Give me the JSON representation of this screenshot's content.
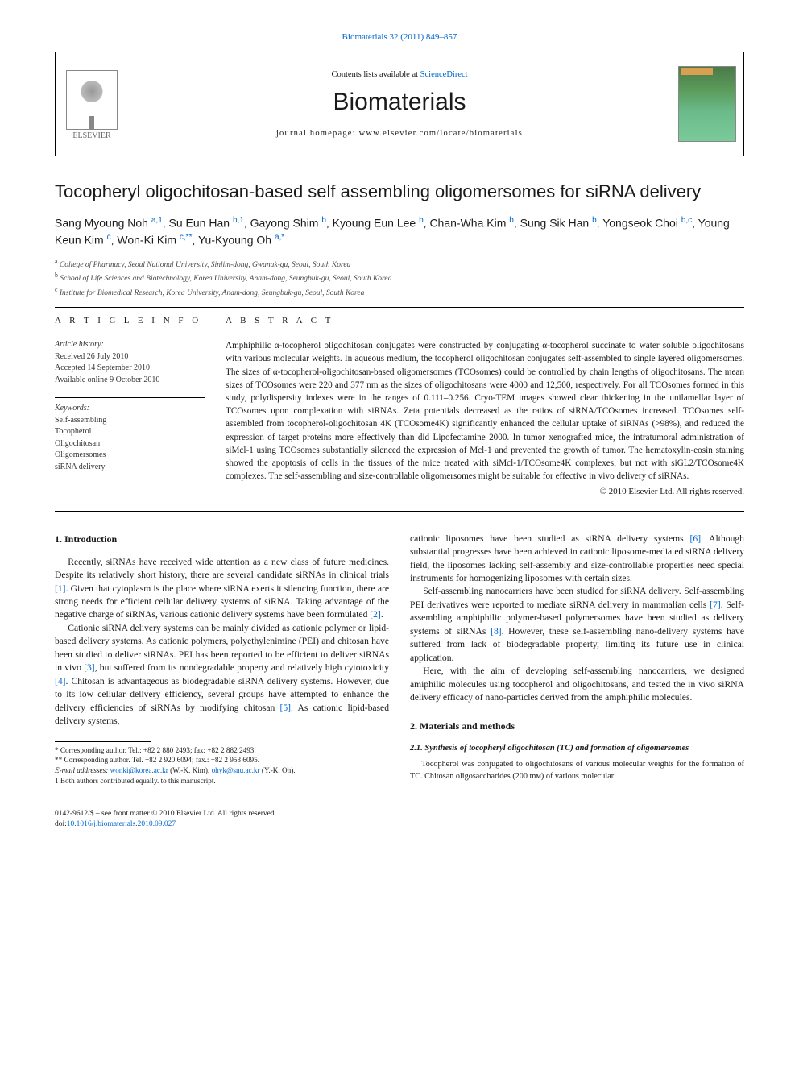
{
  "citation": "Biomaterials 32 (2011) 849–857",
  "header": {
    "contents_prefix": "Contents lists available at ",
    "contents_link": "ScienceDirect",
    "journal": "Biomaterials",
    "homepage": "journal homepage: www.elsevier.com/locate/biomaterials",
    "publisher": "ELSEVIER"
  },
  "title": "Tocopheryl oligochitosan-based self assembling oligomersomes for siRNA delivery",
  "authors_html": "Sang Myoung Noh <sup>a,1</sup>, Su Eun Han <sup>b,1</sup>, Gayong Shim <sup>b</sup>, Kyoung Eun Lee <sup>b</sup>, Chan-Wha Kim <sup>b</sup>, Sung Sik Han <sup>b</sup>, Yongseok Choi <sup>b,c</sup>, Young Keun Kim <sup>c</sup>, Won-Ki Kim <sup>c,**</sup>, Yu-Kyoung Oh <sup>a,*</sup>",
  "affiliations": [
    "a College of Pharmacy, Seoul National University, Sinlim-dong, Gwanak-gu, Seoul, South Korea",
    "b School of Life Sciences and Biotechnology, Korea University, Anam-dong, Seungbuk-gu, Seoul, South Korea",
    "c Institute for Biomedical Research, Korea University, Anam-dong, Seungbuk-gu, Seoul, South Korea"
  ],
  "info": {
    "heading": "A R T I C L E   I N F O",
    "history_label": "Article history:",
    "received": "Received 26 July 2010",
    "accepted": "Accepted 14 September 2010",
    "online": "Available online 9 October 2010",
    "keywords_label": "Keywords:",
    "keywords": [
      "Self-assembling",
      "Tocopherol",
      "Oligochitosan",
      "Oligomersomes",
      "siRNA delivery"
    ]
  },
  "abstract": {
    "heading": "A B S T R A C T",
    "text": "Amphiphilic α-tocopherol oligochitosan conjugates were constructed by conjugating α-tocopherol succinate to water soluble oligochitosans with various molecular weights. In aqueous medium, the tocopherol oligochitosan conjugates self-assembled to single layered oligomersomes. The sizes of α-tocopherol-oligochitosan-based oligomersomes (TCOsomes) could be controlled by chain lengths of oligochitosans. The mean sizes of TCOsomes were 220 and 377 nm as the sizes of oligochitosans were 4000 and 12,500, respectively. For all TCOsomes formed in this study, polydispersity indexes were in the ranges of 0.111–0.256. Cryo-TEM images showed clear thickening in the unilamellar layer of TCOsomes upon complexation with siRNAs. Zeta potentials decreased as the ratios of siRNA/TCOsomes increased. TCOsomes self-assembled from tocopherol-oligochitosan 4K (TCOsome4K) significantly enhanced the cellular uptake of siRNAs (>98%), and reduced the expression of target proteins more effectively than did Lipofectamine 2000. In tumor xenografted mice, the intratumoral administration of siMcl-1 using TCOsomes substantially silenced the expression of Mcl-1 and prevented the growth of tumor. The hematoxylin-eosin staining showed the apoptosis of cells in the tissues of the mice treated with siMcl-1/TCOsome4K complexes, but not with siGL2/TCOsome4K complexes. The self-assembling and size-controllable oligomersomes might be suitable for effective in vivo delivery of siRNAs.",
    "copyright": "© 2010 Elsevier Ltd. All rights reserved."
  },
  "sections": {
    "intro_heading": "1.  Introduction",
    "intro_p1": "Recently, siRNAs have received wide attention as a new class of future medicines. Despite its relatively short history, there are several candidate siRNAs in clinical trials [1]. Given that cytoplasm is the place where siRNA exerts it silencing function, there are strong needs for efficient cellular delivery systems of siRNA. Taking advantage of the negative charge of siRNAs, various cationic delivery systems have been formulated [2].",
    "intro_p2": "Cationic siRNA delivery systems can be mainly divided as cationic polymer or lipid-based delivery systems. As cationic polymers, polyethylenimine (PEI) and chitosan have been studied to deliver siRNAs. PEI has been reported to be efficient to deliver siRNAs in vivo [3], but suffered from its nondegradable property and relatively high cytotoxicity [4]. Chitosan is advantageous as biodegradable siRNA delivery systems. However, due to its low cellular delivery efficiency, several groups have attempted to enhance the delivery efficiencies of siRNAs by modifying chitosan [5]. As cationic lipid-based delivery systems,",
    "intro_p3": "cationic liposomes have been studied as siRNA delivery systems [6]. Although substantial progresses have been achieved in cationic liposome-mediated siRNA delivery field, the liposomes lacking self-assembly and size-controllable properties need special instruments for homogenizing liposomes with certain sizes.",
    "intro_p4": "Self-assembling nanocarriers have been studied for siRNA delivery. Self-assembling PEI derivatives were reported to mediate siRNA delivery in mammalian cells [7]. Self-assembling amphiphilic polymer-based polymersomes have been studied as delivery systems of siRNAs [8]. However, these self-assembling nano-delivery systems have suffered from lack of biodegradable property, limiting its future use in clinical application.",
    "intro_p5": "Here, with the aim of developing self-assembling nanocarriers, we designed amiphilic molecules using tocopherol and oligochitosans, and tested the in vivo siRNA delivery efficacy of nano-particles derived from the amphiphilic molecules.",
    "mm_heading": "2.  Materials and methods",
    "mm_sub1": "2.1.  Synthesis of tocopheryl oligochitosan (TC) and formation of oligomersomes",
    "mm_p1": "Tocopherol was conjugated to oligochitosans of various molecular weights for the formation of TC. Chitosan oligosaccharides (200 mᴍ) of various molecular"
  },
  "footnotes": {
    "c1": "* Corresponding author. Tel.: +82 2 880 2493; fax: +82 2 882 2493.",
    "c2": "** Corresponding author. Tel. +82 2 920 6094; fax.: +82 2 953 6095.",
    "emails_label": "E-mail addresses:",
    "email1": "wonki@korea.ac.kr",
    "email1_who": " (W.-K. Kim), ",
    "email2": "ohyk@snu.ac.kr",
    "email2_who": " (Y.-K. Oh).",
    "equal": "1  Both authors contributed equally. to this manuscript."
  },
  "footer": {
    "issn": "0142-9612/$ – see front matter © 2010 Elsevier Ltd. All rights reserved.",
    "doi_label": "doi:",
    "doi": "10.1016/j.biomaterials.2010.09.027"
  },
  "colors": {
    "link": "#0066cc",
    "text": "#1a1a1a",
    "rule": "#000000",
    "bg": "#ffffff"
  }
}
